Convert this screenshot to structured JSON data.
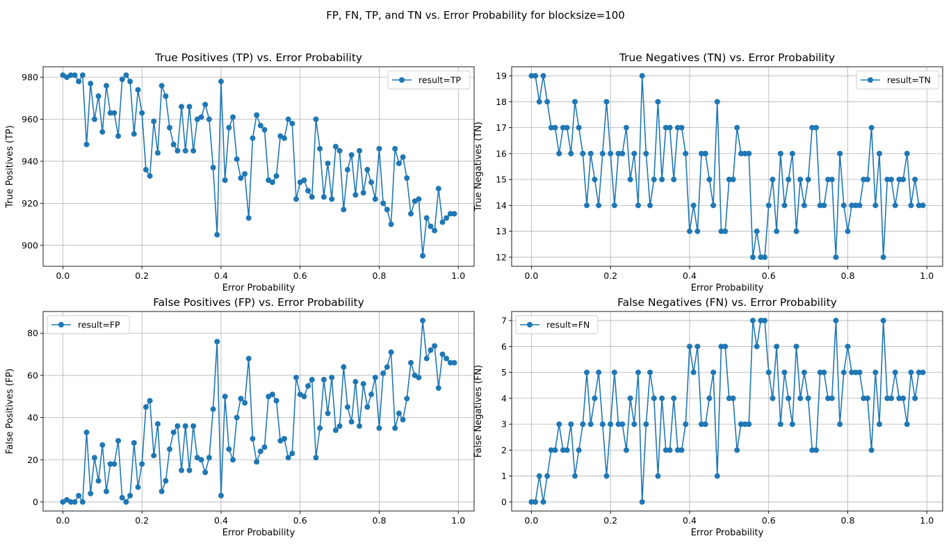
{
  "suptitle": "FP, FN, TP, and TN vs. Error Probability for blocksize=100",
  "chart_data": [
    {
      "id": "tp",
      "type": "line",
      "title": "True Positives (TP) vs. Error Probability",
      "xlabel": "Error Probability",
      "ylabel": "True Positives (TP)",
      "xlim": [
        -0.05,
        1.04
      ],
      "ylim": [
        890,
        985
      ],
      "xticks": [
        0.0,
        0.2,
        0.4,
        0.6,
        0.8,
        1.0
      ],
      "xtick_labels": [
        "0.0",
        "0.2",
        "0.4",
        "0.6",
        "0.8",
        "1.0"
      ],
      "yticks": [
        900,
        920,
        940,
        960,
        980
      ],
      "ytick_labels": [
        "900",
        "920",
        "940",
        "960",
        "980"
      ],
      "grid": true,
      "legend_position": "top-right",
      "series": [
        {
          "name": "result=TP",
          "color": "#1f77b4",
          "values": [
            981,
            980,
            981,
            981,
            978,
            981,
            948,
            977,
            960,
            971,
            954,
            976,
            963,
            963,
            952,
            979,
            981,
            978,
            953,
            974,
            963,
            936,
            933,
            959,
            944,
            976,
            971,
            956,
            948,
            945,
            966,
            945,
            966,
            945,
            960,
            961,
            967,
            960,
            937,
            905,
            978,
            931,
            956,
            961,
            941,
            932,
            934,
            913,
            951,
            962,
            957,
            955,
            931,
            930,
            933,
            952,
            951,
            960,
            958,
            922,
            930,
            931,
            926,
            923,
            960,
            946,
            923,
            939,
            922,
            947,
            945,
            917,
            936,
            943,
            924,
            945,
            925,
            936,
            930,
            922,
            946,
            920,
            917,
            910,
            946,
            939,
            942,
            932,
            915,
            921,
            922,
            895,
            913,
            909,
            907,
            927,
            911,
            913,
            915,
            915
          ]
        }
      ]
    },
    {
      "id": "tn",
      "type": "line",
      "title": "True Negatives (TN) vs. Error Probability",
      "xlabel": "Error Probability",
      "ylabel": "True Negatives (TN)",
      "xlim": [
        -0.05,
        1.04
      ],
      "ylim": [
        11.65,
        19.35
      ],
      "xticks": [
        0.0,
        0.2,
        0.4,
        0.6,
        0.8,
        1.0
      ],
      "xtick_labels": [
        "0.0",
        "0.2",
        "0.4",
        "0.6",
        "0.8",
        "1.0"
      ],
      "yticks": [
        12,
        13,
        14,
        15,
        16,
        17,
        18,
        19
      ],
      "ytick_labels": [
        "12",
        "13",
        "14",
        "15",
        "16",
        "17",
        "18",
        "19"
      ],
      "grid": true,
      "legend_position": "top-right",
      "series": [
        {
          "name": "result=TN",
          "color": "#1f77b4",
          "values": [
            19,
            19,
            18,
            19,
            18,
            17,
            17,
            16,
            17,
            17,
            16,
            18,
            17,
            16,
            14,
            16,
            15,
            14,
            16,
            18,
            16,
            14,
            16,
            16,
            17,
            15,
            16,
            14,
            19,
            16,
            14,
            15,
            18,
            15,
            17,
            17,
            15,
            17,
            17,
            16,
            13,
            14,
            13,
            16,
            16,
            15,
            14,
            18,
            13,
            13,
            15,
            15,
            17,
            16,
            16,
            16,
            12,
            13,
            12,
            12,
            14,
            15,
            13,
            16,
            14,
            15,
            16,
            13,
            15,
            14,
            15,
            17,
            17,
            14,
            14,
            15,
            15,
            12,
            16,
            14,
            13,
            14,
            14,
            14,
            15,
            15,
            17,
            14,
            16,
            12,
            15,
            15,
            14,
            15,
            15,
            16,
            14,
            15,
            14,
            14
          ]
        }
      ]
    },
    {
      "id": "fp",
      "type": "line",
      "title": "False Positives (FP) vs. Error Probability",
      "xlabel": "Error Probability",
      "ylabel": "False Positives (FP)",
      "xlim": [
        -0.05,
        1.04
      ],
      "ylim": [
        -4.3,
        90.3
      ],
      "xticks": [
        0.0,
        0.2,
        0.4,
        0.6,
        0.8,
        1.0
      ],
      "xtick_labels": [
        "0.0",
        "0.2",
        "0.4",
        "0.6",
        "0.8",
        "1.0"
      ],
      "yticks": [
        0,
        20,
        40,
        60,
        80
      ],
      "ytick_labels": [
        "0",
        "20",
        "40",
        "60",
        "80"
      ],
      "grid": true,
      "legend_position": "top-left",
      "series": [
        {
          "name": "result=FP",
          "color": "#1f77b4",
          "values": [
            0,
            1,
            0,
            0,
            3,
            0,
            33,
            4,
            21,
            10,
            27,
            5,
            18,
            18,
            29,
            2,
            0,
            3,
            28,
            7,
            18,
            45,
            48,
            22,
            37,
            5,
            10,
            25,
            33,
            36,
            15,
            36,
            15,
            36,
            21,
            20,
            14,
            21,
            44,
            76,
            3,
            50,
            25,
            20,
            40,
            49,
            47,
            68,
            30,
            19,
            24,
            26,
            50,
            51,
            48,
            29,
            30,
            21,
            23,
            59,
            51,
            50,
            55,
            58,
            21,
            35,
            58,
            42,
            59,
            34,
            36,
            64,
            45,
            38,
            57,
            36,
            56,
            45,
            51,
            59,
            35,
            61,
            64,
            71,
            35,
            42,
            39,
            49,
            66,
            60,
            59,
            86,
            68,
            72,
            74,
            54,
            70,
            68,
            66,
            66
          ]
        }
      ]
    },
    {
      "id": "fn",
      "type": "line",
      "title": "False Negatives (FN) vs. Error Probability",
      "xlabel": "Error Probability",
      "ylabel": "False Negatives (FN)",
      "xlim": [
        -0.05,
        1.04
      ],
      "ylim": [
        -0.35,
        7.35
      ],
      "xticks": [
        0.0,
        0.2,
        0.4,
        0.6,
        0.8,
        1.0
      ],
      "xtick_labels": [
        "0.0",
        "0.2",
        "0.4",
        "0.6",
        "0.8",
        "1.0"
      ],
      "yticks": [
        0,
        1,
        2,
        3,
        4,
        5,
        6,
        7
      ],
      "ytick_labels": [
        "0",
        "1",
        "2",
        "3",
        "4",
        "5",
        "6",
        "7"
      ],
      "grid": true,
      "legend_position": "top-left",
      "series": [
        {
          "name": "result=FN",
          "color": "#1f77b4",
          "values": [
            0,
            0,
            1,
            0,
            1,
            2,
            2,
            3,
            2,
            2,
            3,
            1,
            2,
            3,
            5,
            3,
            4,
            5,
            3,
            1,
            3,
            5,
            3,
            3,
            2,
            4,
            3,
            5,
            0,
            3,
            5,
            4,
            1,
            4,
            2,
            2,
            4,
            2,
            2,
            3,
            6,
            5,
            6,
            3,
            3,
            4,
            5,
            1,
            6,
            6,
            4,
            4,
            2,
            3,
            3,
            3,
            7,
            6,
            7,
            7,
            5,
            4,
            6,
            3,
            5,
            4,
            3,
            6,
            4,
            5,
            4,
            2,
            2,
            5,
            5,
            4,
            4,
            7,
            3,
            5,
            6,
            5,
            5,
            5,
            4,
            4,
            2,
            5,
            3,
            7,
            4,
            4,
            5,
            4,
            4,
            3,
            5,
            4,
            5,
            5
          ]
        }
      ]
    }
  ]
}
